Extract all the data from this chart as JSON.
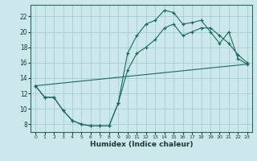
{
  "xlabel": "Humidex (Indice chaleur)",
  "bg_color": "#cce8ec",
  "grid_color": "#9ec8cc",
  "line_color": "#1a6b5a",
  "xlim": [
    -0.5,
    23.5
  ],
  "ylim": [
    7.0,
    23.5
  ],
  "xticks": [
    0,
    1,
    2,
    3,
    4,
    5,
    6,
    7,
    8,
    9,
    10,
    11,
    12,
    13,
    14,
    15,
    16,
    17,
    18,
    19,
    20,
    21,
    22,
    23
  ],
  "yticks": [
    8,
    10,
    12,
    14,
    16,
    18,
    20,
    22
  ],
  "line1_x": [
    0,
    1,
    2,
    3,
    4,
    5,
    6,
    7,
    8,
    9,
    10,
    11,
    12,
    13,
    14,
    15,
    16,
    17,
    18,
    19,
    20,
    21,
    22,
    23
  ],
  "line1_y": [
    13,
    11.5,
    11.5,
    9.8,
    8.5,
    8.0,
    7.8,
    7.8,
    7.8,
    10.8,
    17.2,
    19.5,
    21.0,
    21.5,
    22.8,
    22.5,
    21.0,
    21.2,
    21.5,
    20.0,
    18.5,
    20.0,
    16.5,
    15.8
  ],
  "line2_x": [
    0,
    1,
    2,
    3,
    4,
    5,
    6,
    7,
    8,
    9,
    10,
    11,
    12,
    13,
    14,
    15,
    16,
    17,
    18,
    19,
    20,
    21,
    22,
    23
  ],
  "line2_y": [
    13,
    11.5,
    11.5,
    9.8,
    8.5,
    8.0,
    7.8,
    7.8,
    7.8,
    10.8,
    15.0,
    17.2,
    18.0,
    19.0,
    20.5,
    21.0,
    19.5,
    20.0,
    20.5,
    20.5,
    19.5,
    18.5,
    17.0,
    16.0
  ],
  "line3_x": [
    0,
    23
  ],
  "line3_y": [
    13.0,
    15.8
  ]
}
